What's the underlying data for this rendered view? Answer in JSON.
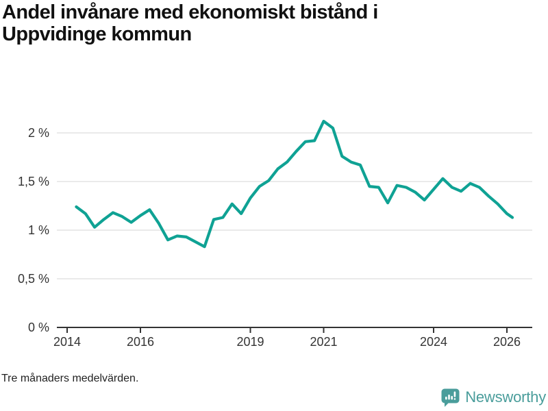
{
  "title_lines": [
    "Andel invånare med ekonomiskt bistånd i",
    "Uppvidinge kommun"
  ],
  "footnote": "Tre månaders medelvärden.",
  "logo": {
    "text": "Newsworthy",
    "color": "#4a9d9b"
  },
  "chart_data": {
    "type": "line",
    "title": "Andel invånare med ekonomiskt bistånd i Uppvidinge kommun",
    "subtitle": "",
    "xlabel": "",
    "ylabel": "",
    "unit": "%",
    "grid": true,
    "legend": "none",
    "line_color": "#0fa294",
    "grid_color": "#dddddd",
    "axis_color": "#333333",
    "label_color": "#333333",
    "xlim": [
      2013.72,
      2026.69
    ],
    "ylim": [
      0,
      2.2
    ],
    "x_ticks": [
      {
        "value": 2014,
        "label": "2014"
      },
      {
        "value": 2016,
        "label": "2016"
      },
      {
        "value": 2019,
        "label": "2019"
      },
      {
        "value": 2021,
        "label": "2021"
      },
      {
        "value": 2024,
        "label": "2024"
      },
      {
        "value": 2026,
        "label": "2026"
      }
    ],
    "y_ticks": [
      {
        "value": 2,
        "label": "2 %"
      },
      {
        "value": 1.5,
        "label": "1,5 %"
      },
      {
        "value": 1,
        "label": "1 %"
      },
      {
        "value": 0.5,
        "label": "0,5 %"
      },
      {
        "value": 0,
        "label": "0 %"
      }
    ],
    "series": [
      {
        "name": "Andel invånare med ekonomiskt bistånd",
        "points": [
          [
            2014.25,
            1.24
          ],
          [
            2014.5,
            1.17
          ],
          [
            2014.75,
            1.03
          ],
          [
            2015.0,
            1.11
          ],
          [
            2015.25,
            1.18
          ],
          [
            2015.5,
            1.14
          ],
          [
            2015.75,
            1.08
          ],
          [
            2016.0,
            1.15
          ],
          [
            2016.25,
            1.21
          ],
          [
            2016.5,
            1.07
          ],
          [
            2016.75,
            0.9
          ],
          [
            2017.0,
            0.94
          ],
          [
            2017.25,
            0.93
          ],
          [
            2017.5,
            0.88
          ],
          [
            2017.75,
            0.83
          ],
          [
            2018.0,
            1.11
          ],
          [
            2018.25,
            1.13
          ],
          [
            2018.5,
            1.27
          ],
          [
            2018.75,
            1.17
          ],
          [
            2019.0,
            1.33
          ],
          [
            2019.25,
            1.45
          ],
          [
            2019.5,
            1.51
          ],
          [
            2019.75,
            1.63
          ],
          [
            2020.0,
            1.7
          ],
          [
            2020.25,
            1.81
          ],
          [
            2020.5,
            1.91
          ],
          [
            2020.75,
            1.92
          ],
          [
            2021.0,
            2.12
          ],
          [
            2021.25,
            2.05
          ],
          [
            2021.5,
            1.76
          ],
          [
            2021.75,
            1.7
          ],
          [
            2022.0,
            1.67
          ],
          [
            2022.25,
            1.45
          ],
          [
            2022.5,
            1.44
          ],
          [
            2022.75,
            1.28
          ],
          [
            2023.0,
            1.46
          ],
          [
            2023.25,
            1.44
          ],
          [
            2023.5,
            1.39
          ],
          [
            2023.75,
            1.31
          ],
          [
            2024.0,
            1.42
          ],
          [
            2024.25,
            1.53
          ],
          [
            2024.5,
            1.44
          ],
          [
            2024.75,
            1.4
          ],
          [
            2025.0,
            1.48
          ],
          [
            2025.25,
            1.44
          ],
          [
            2025.5,
            1.35
          ],
          [
            2025.75,
            1.27
          ],
          [
            2026.0,
            1.17
          ],
          [
            2026.15,
            1.13
          ]
        ]
      }
    ]
  }
}
